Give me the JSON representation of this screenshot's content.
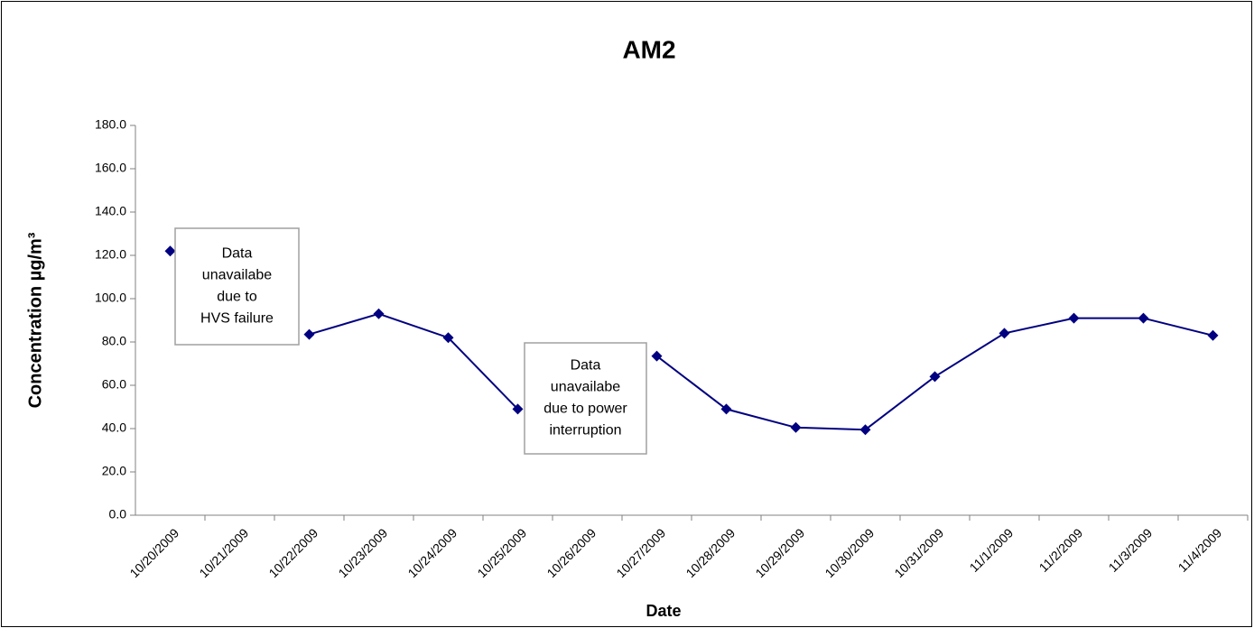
{
  "chart_data": {
    "type": "line",
    "title": "AM2",
    "x_label": "Date",
    "y_label": "Concentration µg/m³",
    "categories": [
      "10/20/2009",
      "10/21/2009",
      "10/22/2009",
      "10/23/2009",
      "10/24/2009",
      "10/25/2009",
      "10/26/2009",
      "10/27/2009",
      "10/28/2009",
      "10/29/2009",
      "10/30/2009",
      "10/31/2009",
      "11/1/2009",
      "11/2/2009",
      "11/3/2009",
      "11/4/2009"
    ],
    "series": [
      {
        "name": "AM2",
        "color": "#000080",
        "values": [
          122.0,
          null,
          83.5,
          93.0,
          82.0,
          49.0,
          null,
          73.5,
          49.0,
          40.5,
          39.5,
          64.0,
          84.0,
          91.0,
          91.0,
          83.0
        ]
      }
    ],
    "ylim": [
      0,
      180
    ],
    "yticks": [
      {
        "value": 0,
        "label": "0.0"
      },
      {
        "value": 20,
        "label": "20.0"
      },
      {
        "value": 40,
        "label": "40.0"
      },
      {
        "value": 60,
        "label": "60.0"
      },
      {
        "value": 80,
        "label": "80.0"
      },
      {
        "value": 100,
        "label": "100.0"
      },
      {
        "value": 120,
        "label": "120.0"
      },
      {
        "value": 140,
        "label": "140.0"
      },
      {
        "value": 160,
        "label": "160.0"
      },
      {
        "value": 180,
        "label": "180.0"
      }
    ],
    "annotations": [
      {
        "lines": [
          "Data",
          "unavailabe",
          "due to",
          "HVS failure"
        ]
      },
      {
        "lines": [
          "Data",
          "unavailabe",
          "due to power",
          "interruption"
        ]
      }
    ],
    "grid": false
  }
}
